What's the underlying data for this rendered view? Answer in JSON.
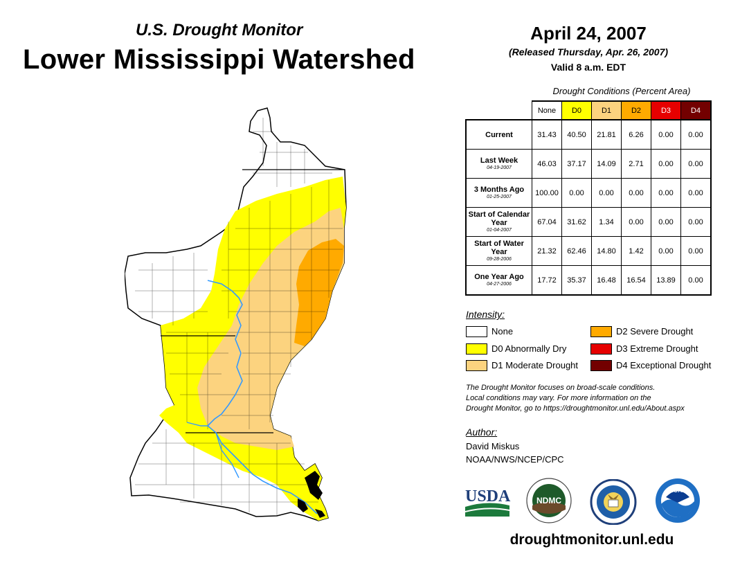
{
  "header": {
    "supertitle": "U.S. Drought Monitor",
    "title": "Lower Mississippi Watershed",
    "date": "April 24, 2007",
    "released": "(Released Thursday, Apr. 26, 2007)",
    "valid": "Valid 8 a.m. EDT"
  },
  "table": {
    "caption": "Drought Conditions (Percent Area)",
    "columns": [
      "None",
      "D0",
      "D1",
      "D2",
      "D3",
      "D4"
    ],
    "rows": [
      {
        "label": "Current",
        "date": "",
        "values": [
          "31.43",
          "40.50",
          "21.81",
          "6.26",
          "0.00",
          "0.00"
        ]
      },
      {
        "label": "Last Week",
        "date": "04-19-2007",
        "values": [
          "46.03",
          "37.17",
          "14.09",
          "2.71",
          "0.00",
          "0.00"
        ]
      },
      {
        "label": "3 Months Ago",
        "date": "01-25-2007",
        "values": [
          "100.00",
          "0.00",
          "0.00",
          "0.00",
          "0.00",
          "0.00"
        ]
      },
      {
        "label": "Start of Calendar Year",
        "date": "01-04-2007",
        "values": [
          "67.04",
          "31.62",
          "1.34",
          "0.00",
          "0.00",
          "0.00"
        ]
      },
      {
        "label": "Start of Water Year",
        "date": "09-28-2006",
        "values": [
          "21.32",
          "62.46",
          "14.80",
          "1.42",
          "0.00",
          "0.00"
        ]
      },
      {
        "label": "One Year Ago",
        "date": "04-27-2006",
        "values": [
          "17.72",
          "35.37",
          "16.48",
          "16.54",
          "13.89",
          "0.00"
        ]
      }
    ]
  },
  "legend": {
    "title": "Intensity:",
    "items": [
      {
        "label": "None",
        "color": "#ffffff"
      },
      {
        "label": "D0 Abnormally Dry",
        "color": "#ffff00"
      },
      {
        "label": "D1 Moderate Drought",
        "color": "#fcd37f"
      },
      {
        "label": "D2 Severe Drought",
        "color": "#ffaa00"
      },
      {
        "label": "D3 Extreme Drought",
        "color": "#e60000"
      },
      {
        "label": "D4 Exceptional Drought",
        "color": "#730000"
      }
    ]
  },
  "note": {
    "line1": "The Drought Monitor focuses on broad-scale conditions.",
    "line2": "Local conditions may vary. For more information on the",
    "line3": "Drought Monitor, go to https://droughtmonitor.unl.edu/About.aspx"
  },
  "author": {
    "title": "Author:",
    "name": "David Miskus",
    "org": "NOAA/NWS/NCEP/CPC"
  },
  "logos": {
    "usda": "USDA",
    "ndmc": "NDMC",
    "noaa": "NOAA"
  },
  "website": "droughtmonitor.unl.edu",
  "colors": {
    "none": "#ffffff",
    "d0": "#ffff00",
    "d1": "#fcd37f",
    "d2": "#ffaa00",
    "d3": "#e60000",
    "d4": "#730000",
    "river": "#3399ff"
  }
}
